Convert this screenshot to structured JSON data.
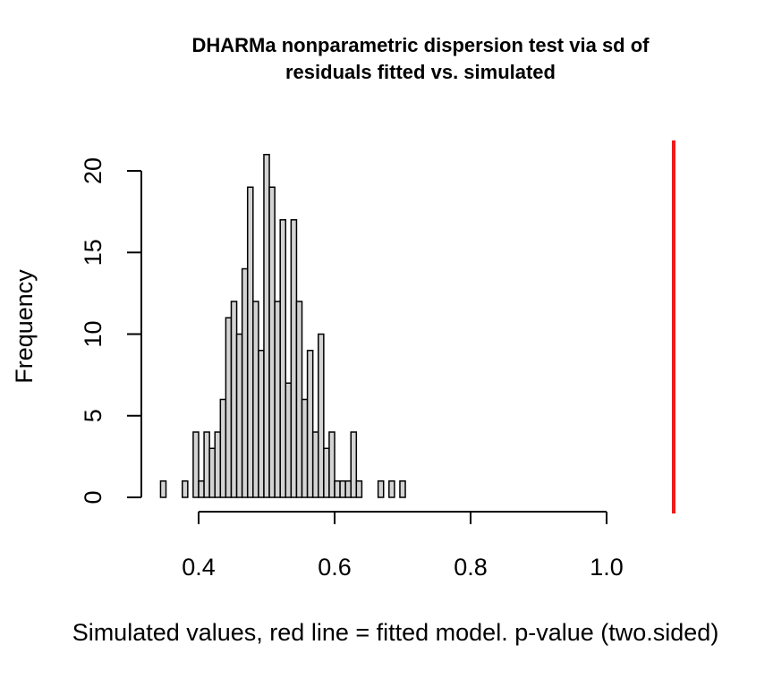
{
  "chart_data": {
    "type": "bar",
    "title_lines": [
      "DHARMa nonparametric dispersion test via sd of",
      "residuals fitted vs. simulated"
    ],
    "xlabel": "Simulated values, red line = fitted model. p-value (two.sided)",
    "ylabel": "Frequency",
    "xlim": [
      0.3,
      1.1
    ],
    "ylim": [
      0,
      21
    ],
    "x_ticks": [
      "0.4",
      "0.6",
      "0.8",
      "1.0"
    ],
    "y_ticks": [
      "0",
      "5",
      "10",
      "15",
      "20"
    ],
    "bin_width": 0.008,
    "bins": [
      {
        "x": 0.344,
        "count": 1
      },
      {
        "x": 0.36,
        "count": 0
      },
      {
        "x": 0.376,
        "count": 1
      },
      {
        "x": 0.392,
        "count": 4
      },
      {
        "x": 0.4,
        "count": 1
      },
      {
        "x": 0.408,
        "count": 4
      },
      {
        "x": 0.416,
        "count": 3
      },
      {
        "x": 0.424,
        "count": 4
      },
      {
        "x": 0.432,
        "count": 6
      },
      {
        "x": 0.44,
        "count": 11
      },
      {
        "x": 0.448,
        "count": 12
      },
      {
        "x": 0.456,
        "count": 10
      },
      {
        "x": 0.464,
        "count": 14
      },
      {
        "x": 0.472,
        "count": 19
      },
      {
        "x": 0.48,
        "count": 12
      },
      {
        "x": 0.488,
        "count": 9
      },
      {
        "x": 0.496,
        "count": 21
      },
      {
        "x": 0.504,
        "count": 19
      },
      {
        "x": 0.512,
        "count": 12
      },
      {
        "x": 0.52,
        "count": 17
      },
      {
        "x": 0.528,
        "count": 7
      },
      {
        "x": 0.536,
        "count": 17
      },
      {
        "x": 0.544,
        "count": 12
      },
      {
        "x": 0.552,
        "count": 6
      },
      {
        "x": 0.56,
        "count": 9
      },
      {
        "x": 0.568,
        "count": 4
      },
      {
        "x": 0.576,
        "count": 10
      },
      {
        "x": 0.584,
        "count": 3
      },
      {
        "x": 0.592,
        "count": 4
      },
      {
        "x": 0.6,
        "count": 1
      },
      {
        "x": 0.608,
        "count": 1
      },
      {
        "x": 0.616,
        "count": 1
      },
      {
        "x": 0.624,
        "count": 4
      },
      {
        "x": 0.632,
        "count": 1
      },
      {
        "x": 0.664,
        "count": 1
      },
      {
        "x": 0.68,
        "count": 1
      },
      {
        "x": 0.696,
        "count": 1
      }
    ],
    "observed_value": 1.1,
    "observed_line_color": "#ee1c1c",
    "bar_fill": "#d3d3d3",
    "bar_stroke": "#000000"
  }
}
